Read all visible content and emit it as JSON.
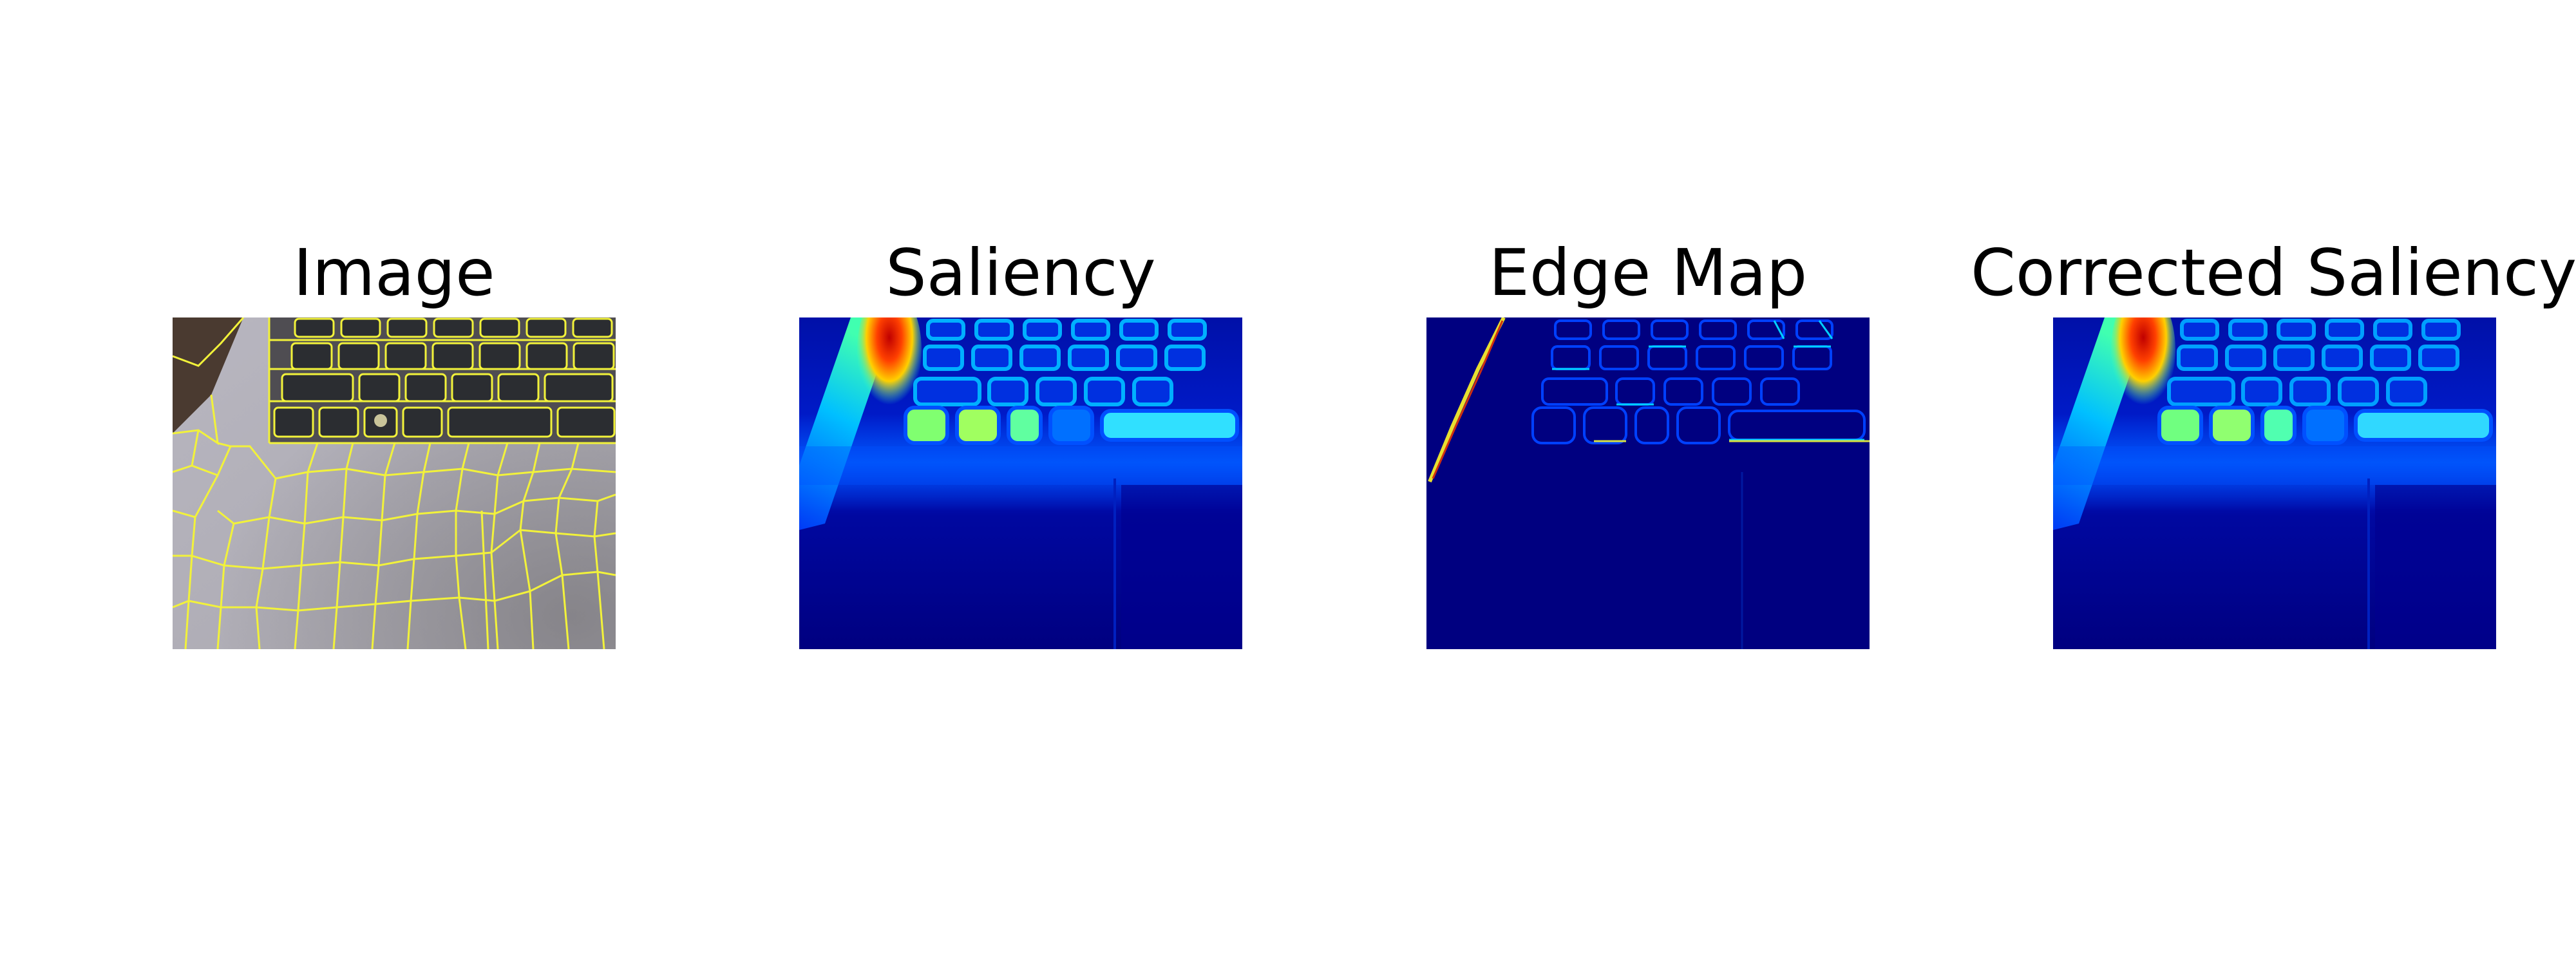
{
  "figure": {
    "panels": [
      {
        "title": "Image"
      },
      {
        "title": "Saliency"
      },
      {
        "title": "Edge Map"
      },
      {
        "title": "Corrected Saliency"
      }
    ]
  },
  "colors": {
    "background": "#ffffff",
    "superpixel_boundary": "#f2f23a",
    "jet_low": "#00007f",
    "jet_mid": "#00a0ff",
    "jet_high": "#d01010"
  }
}
